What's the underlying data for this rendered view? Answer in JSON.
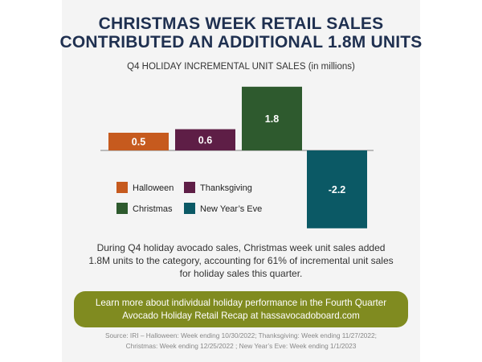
{
  "title": {
    "line1": "CHRISTMAS WEEK RETAIL SALES",
    "line2": "CONTRIBUTED AN ADDITIONAL 1.8M UNITS"
  },
  "chart_data": {
    "type": "bar",
    "title": "Q4 HOLIDAY INCREMENTAL UNIT SALES  (in millions)",
    "categories": [
      "Halloween",
      "Thanksgiving",
      "Christmas",
      "New Year's Eve"
    ],
    "values": [
      0.5,
      0.6,
      1.8,
      -2.2
    ],
    "data_labels": [
      "0.5",
      "0.6",
      "1.8",
      "-2.2"
    ],
    "colors": [
      "#c65a1e",
      "#5e1e46",
      "#2e5a2e",
      "#0b5965"
    ],
    "legend": [
      "Halloween",
      "Thanksgiving",
      "Christmas",
      "New Year’s Eve"
    ],
    "legend_placement": "bottom-left",
    "grid": false
  },
  "body_text": {
    "line1": "During Q4 holiday avocado sales, Christmas week unit sales added",
    "line2": "1.8M units to the category, accounting for 61% of incremental unit sales",
    "line3": "for holiday sales this quarter."
  },
  "cta": {
    "line1": "Learn more about individual holiday performance in the Fourth Quarter",
    "line2": "Avocado Holiday Retail Recap at hassavocadoboard.com"
  },
  "source": {
    "line1": "Source: IRI – Halloween: Week ending 10/30/2022; Thanksgiving: Week ending 11/27/2022;",
    "line2": "Christmas: Week ending 12/25/2022 ; New Year’s Eve: Week ending 1/1/2023"
  },
  "colors": {
    "title": "#1f3050",
    "cta_background": "#808b20",
    "panel": "#f4f4f4"
  }
}
